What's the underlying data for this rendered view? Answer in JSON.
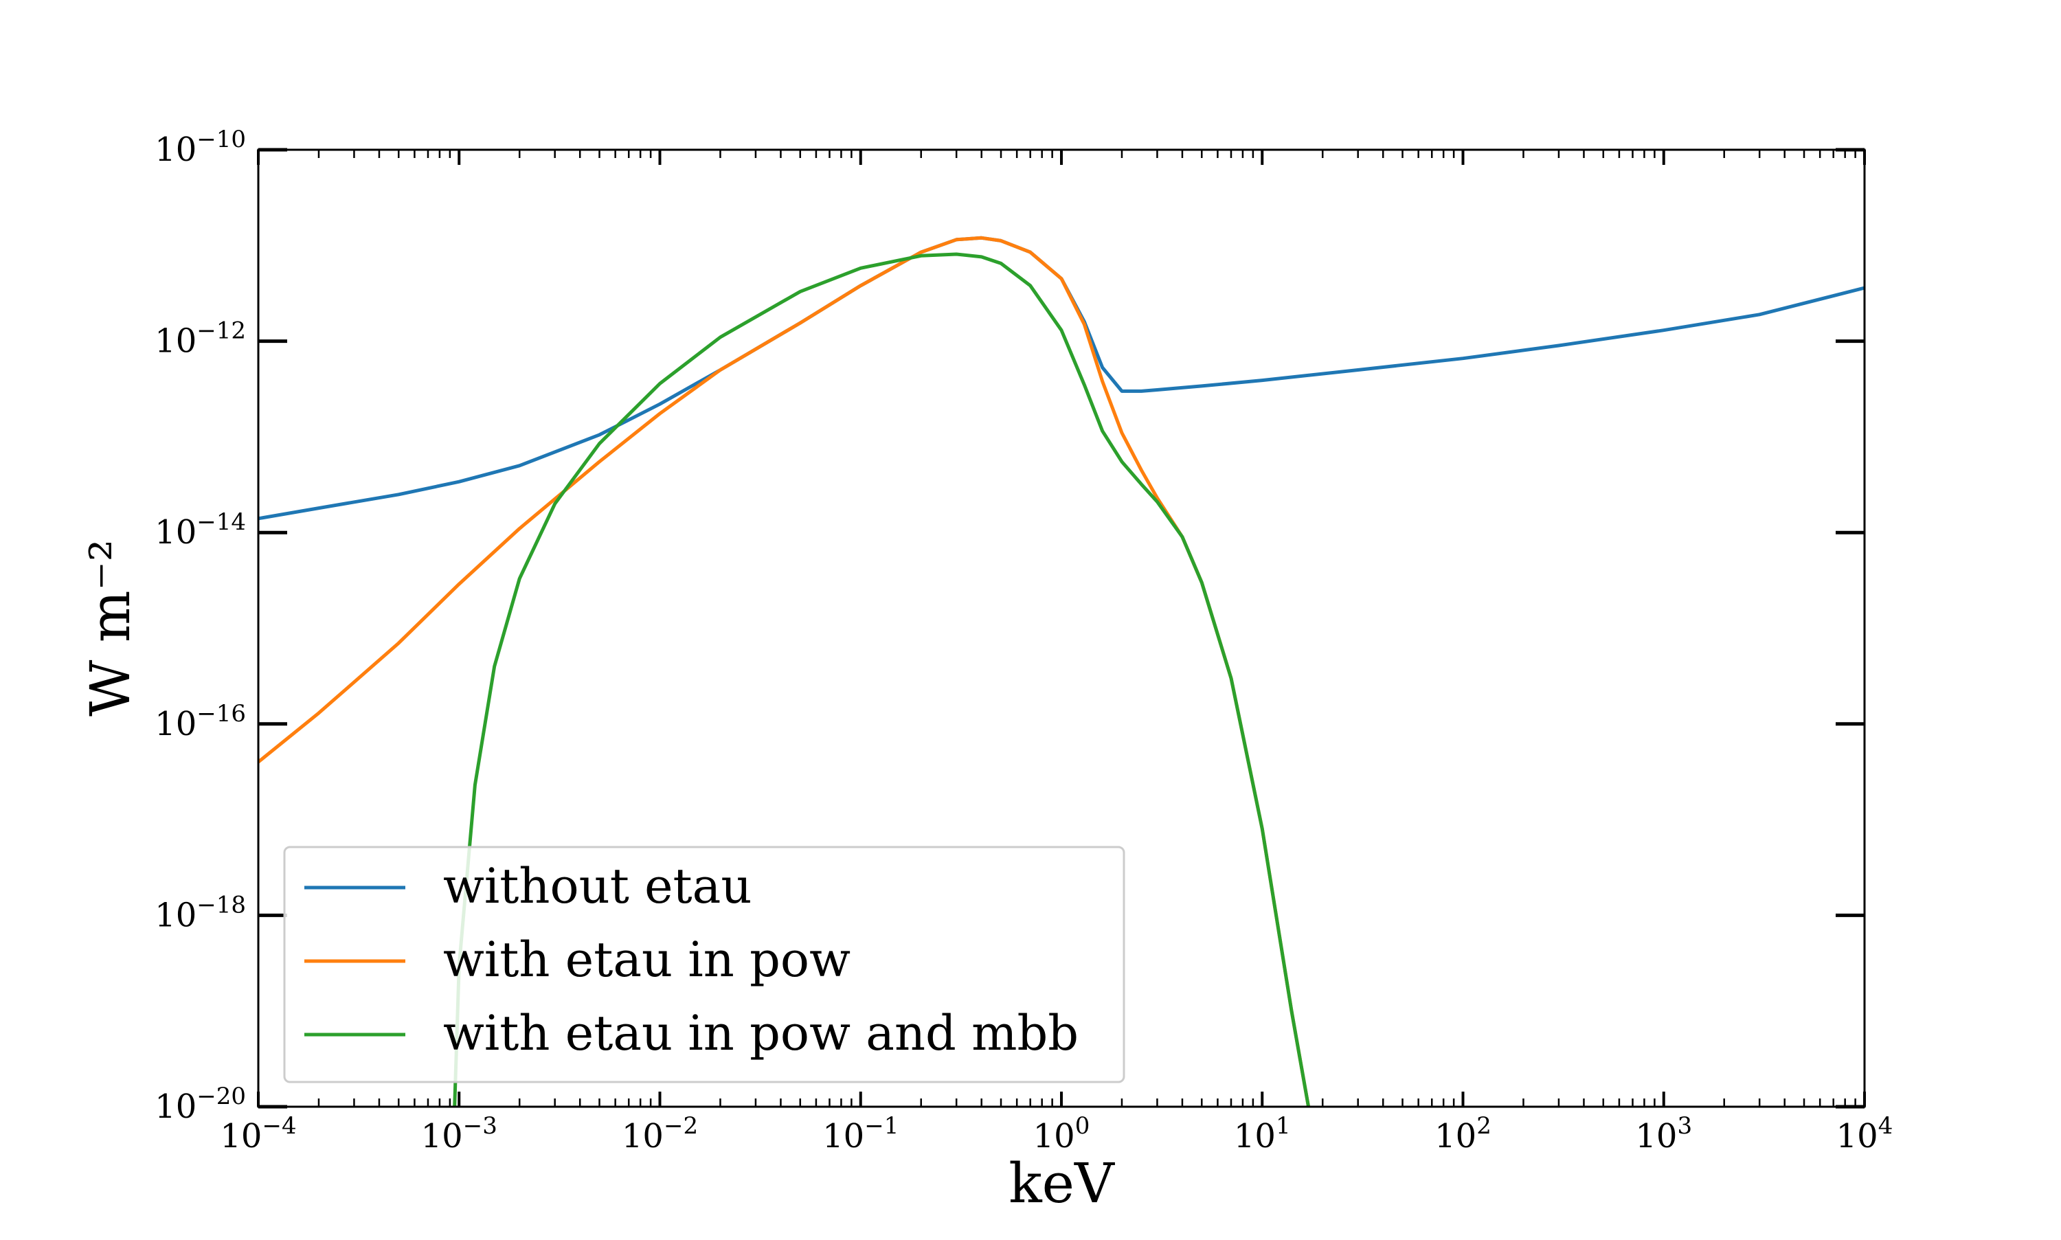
{
  "chart_data": {
    "type": "line",
    "xlabel": "keV",
    "ylabel": "W m⁻²",
    "x_scale": "log",
    "y_scale": "log",
    "xlim": [
      0.0001,
      10000
    ],
    "ylim": [
      1e-20,
      1e-10
    ],
    "x_tick_labels": [
      {
        "base": "10",
        "exp": "−4",
        "value": 0.0001
      },
      {
        "base": "10",
        "exp": "−3",
        "value": 0.001
      },
      {
        "base": "10",
        "exp": "−2",
        "value": 0.01
      },
      {
        "base": "10",
        "exp": "−1",
        "value": 0.1
      },
      {
        "base": "10",
        "exp": "0",
        "value": 1
      },
      {
        "base": "10",
        "exp": "1",
        "value": 10
      },
      {
        "base": "10",
        "exp": "2",
        "value": 100
      },
      {
        "base": "10",
        "exp": "3",
        "value": 1000
      },
      {
        "base": "10",
        "exp": "4",
        "value": 10000
      }
    ],
    "y_tick_labels": [
      {
        "base": "10",
        "exp": "−10",
        "value": 1e-10
      },
      {
        "base": "10",
        "exp": "−12",
        "value": 1e-12
      },
      {
        "base": "10",
        "exp": "−14",
        "value": 1e-14
      },
      {
        "base": "10",
        "exp": "−16",
        "value": 1e-16
      },
      {
        "base": "10",
        "exp": "−18",
        "value": 1e-18
      },
      {
        "base": "10",
        "exp": "−20",
        "value": 1e-20
      }
    ],
    "grid": false,
    "legend_position": "lower-left",
    "series": [
      {
        "name": "without etau",
        "color": "#1f77b4",
        "points": [
          [
            0.0001,
            1.4e-14
          ],
          [
            0.0002,
            1.8e-14
          ],
          [
            0.0005,
            2.5e-14
          ],
          [
            0.001,
            3.4e-14
          ],
          [
            0.002,
            5e-14
          ],
          [
            0.005,
            1.05e-13
          ],
          [
            0.01,
            2.2e-13
          ],
          [
            0.02,
            5e-13
          ],
          [
            0.05,
            1.55e-12
          ],
          [
            0.1,
            3.8e-12
          ],
          [
            0.2,
            8.5e-12
          ],
          [
            0.3,
            1.15e-11
          ],
          [
            0.4,
            1.2e-11
          ],
          [
            0.5,
            1.12e-11
          ],
          [
            0.7,
            8.5e-12
          ],
          [
            1.0,
            4.5e-12
          ],
          [
            1.3,
            1.6e-12
          ],
          [
            1.6,
            5.3e-13
          ],
          [
            2.0,
            3e-13
          ],
          [
            2.5,
            3e-13
          ],
          [
            3.0,
            3.1e-13
          ],
          [
            5.0,
            3.4e-13
          ],
          [
            10,
            3.9e-13
          ],
          [
            30,
            5e-13
          ],
          [
            100,
            6.6e-13
          ],
          [
            300,
            9e-13
          ],
          [
            1000,
            1.3e-12
          ],
          [
            3000,
            1.9e-12
          ],
          [
            10000,
            3.6e-12
          ]
        ]
      },
      {
        "name": "with etau in pow",
        "color": "#ff7f0e",
        "points": [
          [
            0.0001,
            4e-17
          ],
          [
            0.0002,
            1.3e-16
          ],
          [
            0.0005,
            7e-16
          ],
          [
            0.001,
            2.9e-15
          ],
          [
            0.002,
            1.1e-14
          ],
          [
            0.005,
            5.5e-14
          ],
          [
            0.01,
            1.75e-13
          ],
          [
            0.02,
            5e-13
          ],
          [
            0.05,
            1.55e-12
          ],
          [
            0.1,
            3.8e-12
          ],
          [
            0.2,
            8.5e-12
          ],
          [
            0.3,
            1.15e-11
          ],
          [
            0.4,
            1.2e-11
          ],
          [
            0.5,
            1.12e-11
          ],
          [
            0.7,
            8.5e-12
          ],
          [
            1.0,
            4.5e-12
          ],
          [
            1.3,
            1.5e-12
          ],
          [
            1.6,
            3.8e-13
          ],
          [
            2.0,
            1.1e-13
          ],
          [
            2.5,
            4.5e-14
          ],
          [
            3.0,
            2.3e-14
          ],
          [
            4.0,
            9e-15
          ],
          [
            5.0,
            3e-15
          ],
          [
            7.0,
            3e-16
          ],
          [
            10,
            8e-18
          ],
          [
            14,
            1e-19
          ],
          [
            17,
            1e-20
          ]
        ]
      },
      {
        "name": "with etau in pow and mbb",
        "color": "#2ca02c",
        "points": [
          [
            0.00095,
            1e-20
          ],
          [
            0.001,
            3e-19
          ],
          [
            0.0012,
            2.3e-17
          ],
          [
            0.0015,
            4e-16
          ],
          [
            0.002,
            3.3e-15
          ],
          [
            0.003,
            2e-14
          ],
          [
            0.005,
            8.5e-14
          ],
          [
            0.01,
            3.6e-13
          ],
          [
            0.02,
            1.1e-12
          ],
          [
            0.05,
            3.3e-12
          ],
          [
            0.1,
            5.8e-12
          ],
          [
            0.2,
            7.8e-12
          ],
          [
            0.3,
            8.1e-12
          ],
          [
            0.4,
            7.6e-12
          ],
          [
            0.5,
            6.5e-12
          ],
          [
            0.7,
            3.8e-12
          ],
          [
            1.0,
            1.3e-12
          ],
          [
            1.3,
            3.5e-13
          ],
          [
            1.6,
            1.15e-13
          ],
          [
            2.0,
            5.5e-14
          ],
          [
            2.5,
            3.2e-14
          ],
          [
            3.0,
            2.1e-14
          ],
          [
            4.0,
            9e-15
          ],
          [
            5.0,
            3e-15
          ],
          [
            7.0,
            3e-16
          ],
          [
            10,
            8e-18
          ],
          [
            14,
            1e-19
          ],
          [
            17,
            1e-20
          ]
        ]
      }
    ]
  }
}
